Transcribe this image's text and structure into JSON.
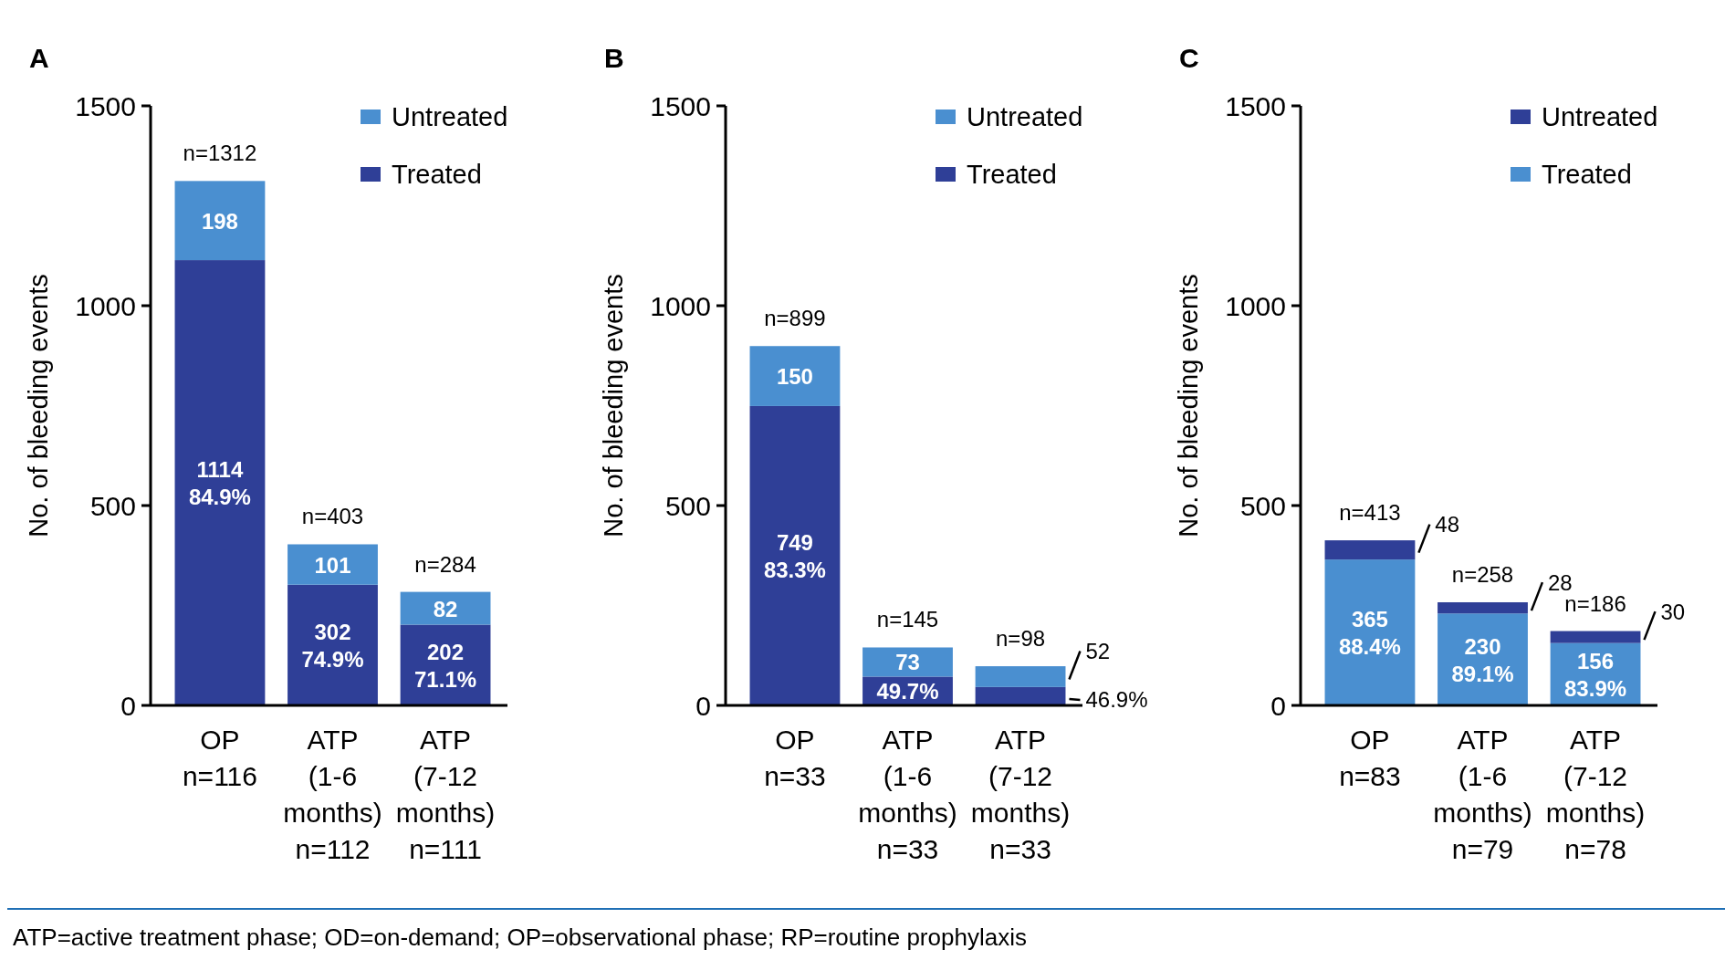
{
  "chart_data": [
    {
      "type": "bar",
      "title": "A",
      "ylabel": "No. of bleeding events",
      "categories": [
        "OP n=116",
        "ATP (1-6 months) n=112",
        "ATP (7-12 months) n=111"
      ],
      "stacked": true,
      "ylim": [
        0,
        1500
      ],
      "yticks": [
        0,
        500,
        1000,
        1500
      ],
      "grid": false,
      "legend": "top right",
      "totals": [
        "n=1312",
        "n=403",
        "n=284"
      ],
      "annotations": [
        "ATP=active treatment phase; OD=on-demand; OP=observational phase; RP=routine prophylaxis"
      ],
      "series": [
        {
          "name": "Treated",
          "color": "#2f3f97",
          "values": [
            1114,
            302,
            202
          ],
          "value_labels": [
            "1114\n84.9%",
            "302\n74.9%",
            "202\n71.1%"
          ]
        },
        {
          "name": "Untreated",
          "color": "#4a8fd0",
          "values": [
            198,
            101,
            82
          ],
          "value_labels": [
            "198",
            "101",
            "82"
          ]
        }
      ]
    },
    {
      "type": "bar",
      "title": "B",
      "ylabel": "No. of bleeding events",
      "categories": [
        "OP n=33",
        "ATP (1-6 months) n=33",
        "ATP (7-12 months) n=33"
      ],
      "stacked": true,
      "ylim": [
        0,
        1500
      ],
      "yticks": [
        0,
        500,
        1000,
        1500
      ],
      "grid": false,
      "legend": "top right",
      "totals": [
        "n=899",
        "n=145",
        "n=98"
      ],
      "annotations": [
        {
          "text": "49.7%",
          "x": "ATP (1-6 months) n=33",
          "y": 72
        },
        {
          "text": "46.9%",
          "x": "ATP (7-12 months) n=33",
          "y": 46
        }
      ],
      "series": [
        {
          "name": "Treated",
          "color": "#2f3f97",
          "values": [
            749,
            72,
            46
          ],
          "value_labels": [
            "749\n83.3%",
            null,
            null
          ]
        },
        {
          "name": "Untreated",
          "color": "#4a8fd0",
          "values": [
            150,
            73,
            52
          ],
          "value_labels": [
            "150",
            "73",
            "52"
          ]
        }
      ]
    },
    {
      "type": "bar",
      "title": "C",
      "ylabel": "No. of bleeding events",
      "categories": [
        "OP n=83",
        "ATP (1-6 months) n=79",
        "ATP (7-12 months) n=78"
      ],
      "stacked": true,
      "ylim": [
        0,
        1500
      ],
      "yticks": [
        0,
        500,
        1000,
        1500
      ],
      "grid": false,
      "legend": "top right",
      "totals": [
        "n=413",
        "n=258",
        "n=186"
      ],
      "series": [
        {
          "name": "Treated",
          "color": "#4a8fd0",
          "values": [
            365,
            230,
            156
          ],
          "value_labels": [
            "365\n88.4%",
            "230\n89.1%",
            "156\n83.9%"
          ]
        },
        {
          "name": "Untreated",
          "color": "#2f3f97",
          "values": [
            48,
            28,
            30
          ],
          "value_labels": [
            "48",
            "28",
            "30"
          ]
        }
      ]
    }
  ]
}
